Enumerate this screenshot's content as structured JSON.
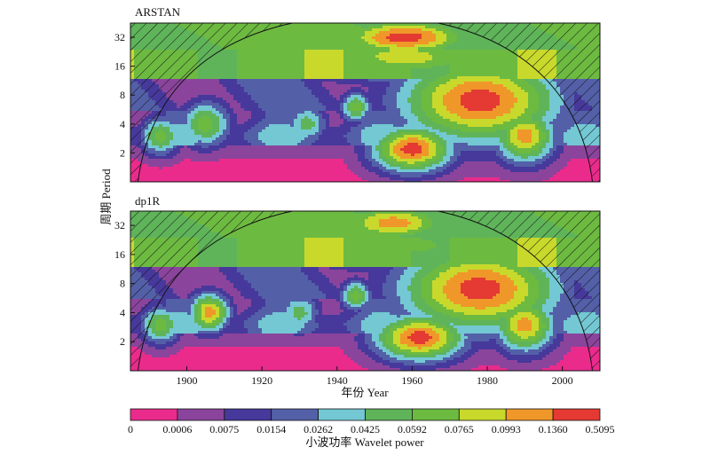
{
  "chart_data": {
    "type": "heatmap",
    "subtype": "wavelet-power-spectrum",
    "ylabel": "周期 Period",
    "xlabel": "年份 Year",
    "x_ticks": [
      1900,
      1920,
      1940,
      1960,
      1980,
      2000
    ],
    "xlim": [
      1885,
      2010
    ],
    "y_ticks": [
      2,
      4,
      8,
      16,
      32
    ],
    "ylim": [
      1,
      45
    ],
    "y_scale": "log2",
    "panels": [
      {
        "title": "ARSTAN",
        "hotspots": [
          {
            "x": 1978,
            "y": 7,
            "level": 9,
            "sx": 16,
            "sy": 1.1
          },
          {
            "x": 1960,
            "y": 2.2,
            "level": 9,
            "sx": 8,
            "sy": 0.6
          },
          {
            "x": 1990,
            "y": 3,
            "level": 8,
            "sx": 6,
            "sy": 0.7
          },
          {
            "x": 1958,
            "y": 32,
            "level": 9,
            "sx": 14,
            "sy": 0.5
          },
          {
            "x": 1958,
            "y": 20,
            "level": 7,
            "sx": 20,
            "sy": 0.6
          },
          {
            "x": 1905,
            "y": 4,
            "level": 6,
            "sx": 5,
            "sy": 0.6
          },
          {
            "x": 1893,
            "y": 3,
            "level": 6,
            "sx": 4,
            "sy": 0.5
          },
          {
            "x": 1932,
            "y": 4,
            "level": 5,
            "sx": 4,
            "sy": 0.5
          },
          {
            "x": 1945,
            "y": 6,
            "level": 6,
            "sx": 3,
            "sy": 0.4
          }
        ]
      },
      {
        "title": "dp1R",
        "hotspots": [
          {
            "x": 1978,
            "y": 7,
            "level": 9,
            "sx": 16,
            "sy": 1.1
          },
          {
            "x": 1962,
            "y": 2.2,
            "level": 9,
            "sx": 9,
            "sy": 0.6
          },
          {
            "x": 1990,
            "y": 3,
            "level": 8,
            "sx": 6,
            "sy": 0.7
          },
          {
            "x": 1955,
            "y": 34,
            "level": 8,
            "sx": 12,
            "sy": 0.5
          },
          {
            "x": 1958,
            "y": 20,
            "level": 6,
            "sx": 20,
            "sy": 0.6
          },
          {
            "x": 1906,
            "y": 4,
            "level": 8,
            "sx": 4,
            "sy": 0.5
          },
          {
            "x": 1893,
            "y": 3,
            "level": 6,
            "sx": 4,
            "sy": 0.5
          },
          {
            "x": 1930,
            "y": 4,
            "level": 5,
            "sx": 4,
            "sy": 0.5
          },
          {
            "x": 1945,
            "y": 6,
            "level": 6,
            "sx": 3,
            "sy": 0.4
          }
        ]
      }
    ],
    "colorbar": {
      "label": "小波功率 Wavelet power",
      "levels": [
        "0",
        "0.0006",
        "0.0075",
        "0.0154",
        "0.0262",
        "0.0425",
        "0.0592",
        "0.0765",
        "0.0993",
        "0.1360",
        "0.5095"
      ],
      "colors": [
        "#ea2b8c",
        "#8b449c",
        "#46399b",
        "#5360a8",
        "#73c8d3",
        "#5fb45a",
        "#6dba41",
        "#c8d92c",
        "#f0972a",
        "#e43a33"
      ]
    },
    "cone_of_influence": "hatched"
  }
}
